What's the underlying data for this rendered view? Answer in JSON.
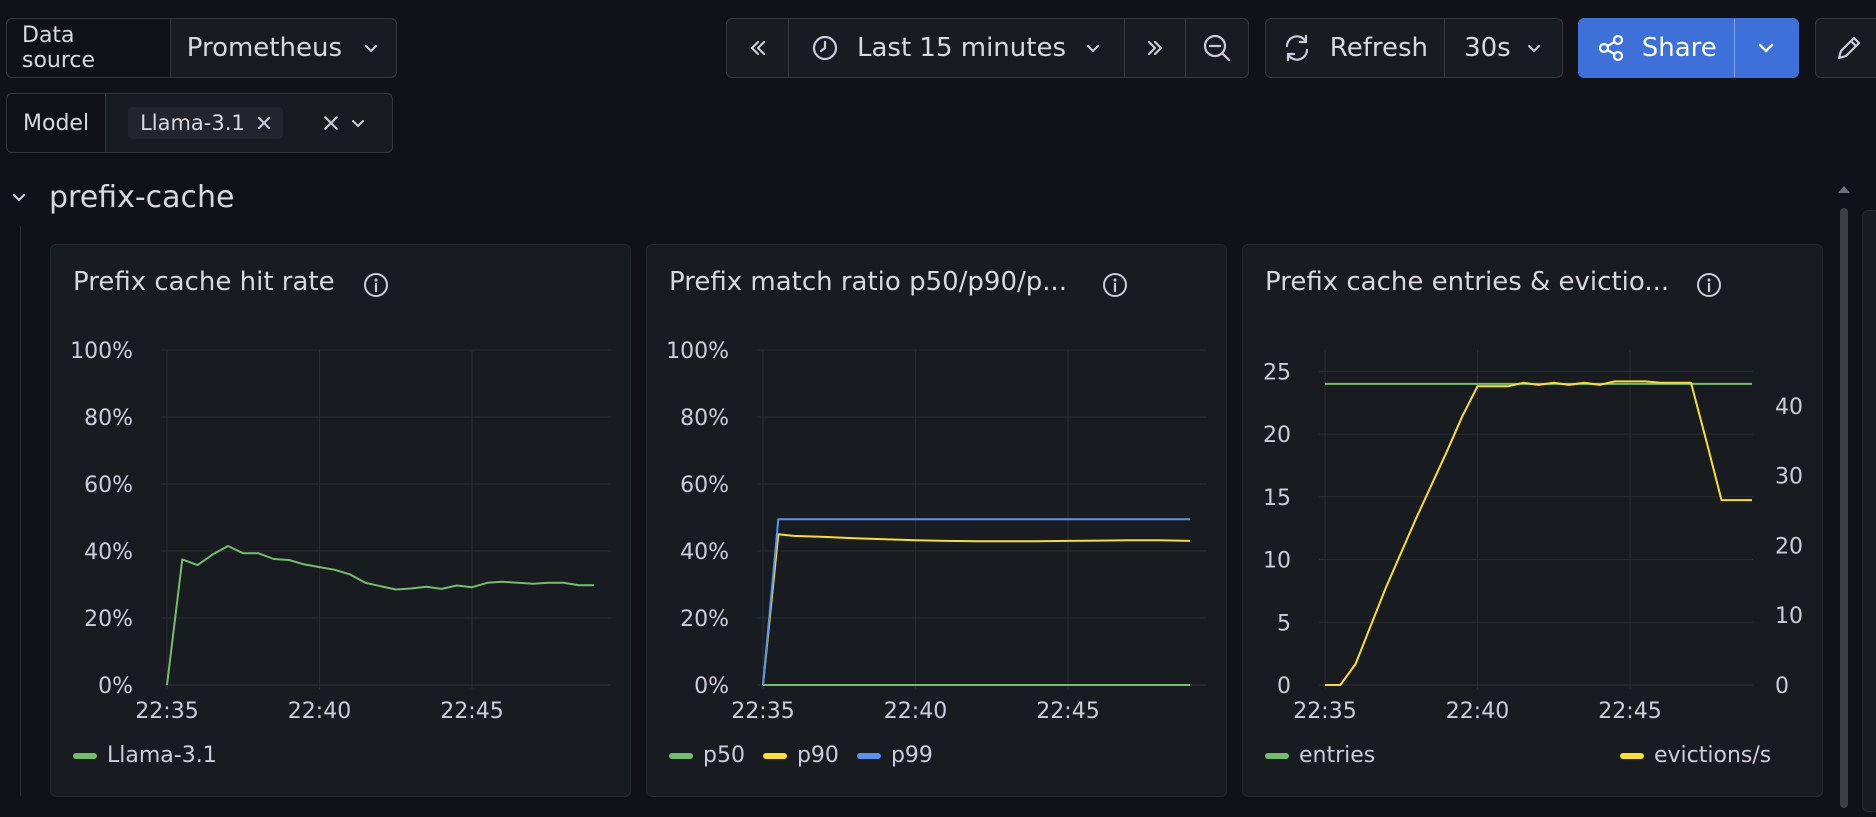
{
  "toolbar": {
    "datasource_label": "Data source",
    "datasource_value": "Prometheus",
    "time_range": "Last 15 minutes",
    "refresh_label": "Refresh",
    "refresh_interval": "30s",
    "share_label": "Share",
    "model_label": "Model",
    "model_chip": "Llama-3.1"
  },
  "row": {
    "title": "prefix-cache"
  },
  "colors": {
    "green": "#73bf69",
    "yellow": "#fade2a",
    "blue": "#5794f2",
    "accent": "#3d71d9"
  },
  "panels": [
    {
      "title": "Prefix cache hit rate",
      "legend": [
        {
          "name": "Llama-3.1",
          "color": "#73bf69"
        }
      ]
    },
    {
      "title": "Prefix match ratio p50/p90/p...",
      "legend": [
        {
          "name": "p50",
          "color": "#73bf69"
        },
        {
          "name": "p90",
          "color": "#fade2a"
        },
        {
          "name": "p99",
          "color": "#5794f2"
        }
      ]
    },
    {
      "title": "Prefix cache entries & evictio...",
      "legend": [
        {
          "name": "entries",
          "color": "#73bf69"
        },
        {
          "name": "evictions/s",
          "color": "#fade2a"
        }
      ]
    }
  ],
  "chart_data": [
    {
      "type": "line",
      "x_ticks": [
        "22:35",
        "22:40",
        "22:45"
      ],
      "y_ticks": [
        "0%",
        "20%",
        "40%",
        "60%",
        "80%",
        "100%"
      ],
      "ylim": [
        0,
        100
      ],
      "x_range_min": [
        0,
        14
      ],
      "series": [
        {
          "name": "Llama-3.1",
          "color": "#73bf69",
          "x": [
            0,
            0.5,
            1,
            1.5,
            2,
            2.5,
            3,
            3.5,
            4,
            4.5,
            5,
            5.5,
            6,
            6.5,
            7,
            7.5,
            8,
            8.5,
            9,
            9.5,
            10,
            10.5,
            11,
            11.5,
            12,
            12.5,
            13,
            13.5,
            14
          ],
          "y": [
            0,
            37.5,
            35.8,
            39,
            41.5,
            39.3,
            39.3,
            37.6,
            37.3,
            36,
            35.2,
            34.4,
            33,
            30.5,
            29.5,
            28.5,
            28.8,
            29.3,
            28.7,
            29.7,
            29.2,
            30.5,
            30.8,
            30.5,
            30.2,
            30.5,
            30.5,
            29.8,
            29.8
          ]
        }
      ]
    },
    {
      "type": "line",
      "x_ticks": [
        "22:35",
        "22:40",
        "22:45"
      ],
      "y_ticks": [
        "0%",
        "20%",
        "40%",
        "60%",
        "80%",
        "100%"
      ],
      "ylim": [
        0,
        100
      ],
      "x_range_min": [
        0,
        14
      ],
      "series": [
        {
          "name": "p50",
          "color": "#73bf69",
          "x": [
            0,
            14
          ],
          "y": [
            0,
            0
          ]
        },
        {
          "name": "p90",
          "color": "#fade2a",
          "x": [
            0,
            0.5,
            1,
            2,
            3,
            4,
            5,
            6,
            7,
            8,
            9,
            10,
            11,
            12,
            13,
            14
          ],
          "y": [
            0,
            45,
            44.5,
            44.2,
            43.8,
            43.5,
            43.2,
            43,
            42.9,
            42.9,
            42.9,
            43,
            43.1,
            43.2,
            43.2,
            43
          ]
        },
        {
          "name": "p99",
          "color": "#5794f2",
          "x": [
            0,
            0.5,
            14
          ],
          "y": [
            0,
            49.5,
            49.5
          ]
        }
      ]
    },
    {
      "type": "line",
      "x_ticks": [
        "22:35",
        "22:40",
        "22:45"
      ],
      "y_ticks_left": [
        "0",
        "5",
        "10",
        "15",
        "20",
        "25"
      ],
      "y_ticks_right": [
        "0",
        "10",
        "20",
        "30",
        "40"
      ],
      "ylim_left": [
        0,
        26.7
      ],
      "ylim_right": [
        0,
        48
      ],
      "x_range_min": [
        0,
        14
      ],
      "series": [
        {
          "name": "entries",
          "color": "#73bf69",
          "axis": "left",
          "x": [
            0,
            14
          ],
          "y": [
            24,
            24
          ]
        },
        {
          "name": "evictions/s",
          "color": "#fade2a",
          "axis": "right",
          "x": [
            0,
            0.5,
            1,
            2,
            3,
            4,
            4.5,
            5,
            5.5,
            6,
            6.5,
            7,
            7.5,
            8,
            8.5,
            9,
            9.5,
            10,
            10.5,
            11,
            11.5,
            12,
            12.5,
            13,
            13.5,
            14
          ],
          "y": [
            0,
            0,
            3,
            14,
            24,
            33.5,
            38.5,
            42.8,
            42.8,
            42.8,
            43.3,
            43,
            43.3,
            43,
            43.3,
            43,
            43.5,
            43.5,
            43.5,
            43.3,
            43.3,
            43.3,
            35,
            26.5,
            26.5,
            26.5
          ]
        }
      ]
    }
  ]
}
